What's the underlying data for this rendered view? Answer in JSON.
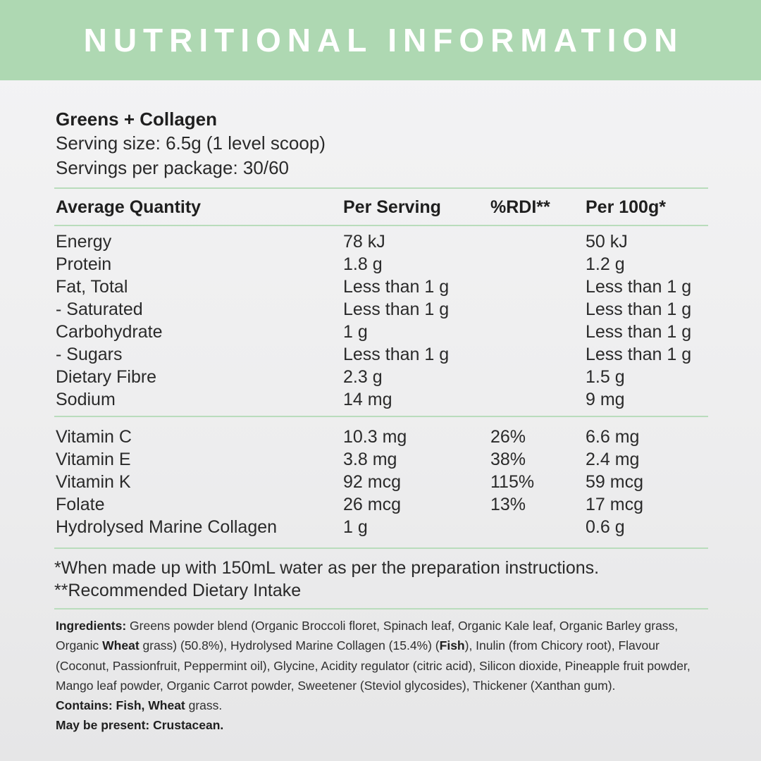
{
  "header": {
    "title": "NUTRITIONAL INFORMATION"
  },
  "product": {
    "name": "Greens + Collagen",
    "serving_size": "Serving size: 6.5g (1 level scoop)",
    "servings_per_package": "Servings per package: 30/60"
  },
  "table": {
    "columns": [
      "Average Quantity",
      "Per Serving",
      "%RDI**",
      "Per 100g*"
    ],
    "macros": [
      [
        "Energy",
        "78 kJ",
        "",
        "50 kJ"
      ],
      [
        "Protein",
        "1.8 g",
        "",
        "1.2 g"
      ],
      [
        "Fat, Total",
        "Less than 1 g",
        "",
        "Less than 1 g"
      ],
      [
        "- Saturated",
        "Less than 1 g",
        "",
        "Less than 1 g"
      ],
      [
        "Carbohydrate",
        "1 g",
        "",
        "Less than 1 g"
      ],
      [
        "- Sugars",
        "Less than 1 g",
        "",
        "Less than 1 g"
      ],
      [
        "Dietary Fibre",
        "2.3 g",
        "",
        "1.5 g"
      ],
      [
        "Sodium",
        "14 mg",
        "",
        "9 mg"
      ]
    ],
    "micros": [
      [
        "Vitamin C",
        "10.3 mg",
        "26%",
        "6.6 mg"
      ],
      [
        "Vitamin E",
        "3.8 mg",
        "38%",
        "2.4 mg"
      ],
      [
        "Vitamin K",
        "92 mcg",
        "115%",
        "59 mcg"
      ],
      [
        "Folate",
        "26 mcg",
        "13%",
        "17 mcg"
      ],
      [
        "Hydrolysed Marine Collagen",
        "1 g",
        "",
        "0.6 g"
      ]
    ]
  },
  "footnotes": {
    "asterisk": "*When made up with 150mL water as per the preparation instructions.",
    "double_asterisk": "**Recommended Dietary Intake"
  },
  "ingredients": {
    "label": "Ingredients:",
    "text_1": " Greens powder blend (Organic Broccoli floret, Spinach leaf, Organic Kale leaf, Organic Barley grass, Organic ",
    "wheat": "Wheat",
    "text_2": " grass) (50.8%), Hydrolysed Marine Collagen (15.4%) (",
    "fish": "Fish",
    "text_3": "), Inulin (from Chicory root), Flavour (Coconut, Passionfruit, Peppermint oil), Glycine, Acidity regulator (citric acid), Silicon dioxide, Pineapple fruit powder, Mango leaf powder, Organic Carrot powder, Sweetener (Steviol glycosides), Thickener (Xanthan gum).",
    "contains_label": "Contains: Fish, Wheat",
    "contains_rest": " grass.",
    "may_contain": "May be present: Crustacean."
  }
}
